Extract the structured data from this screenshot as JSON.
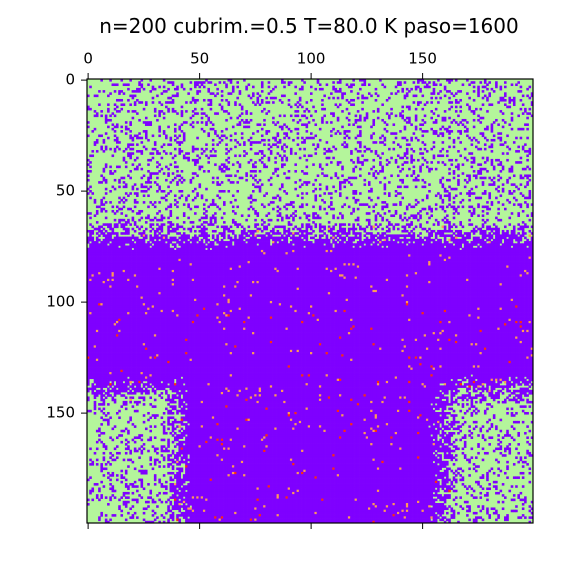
{
  "chart_data": {
    "type": "heatmap",
    "title": "n=200 cubrim.=0.5 T=80.0 K paso=1600",
    "xlabel": "",
    "ylabel": "",
    "xlim": [
      0,
      200
    ],
    "ylim": [
      0,
      200
    ],
    "x_ticks": [
      "0",
      "50",
      "100",
      "150"
    ],
    "y_ticks": [
      "0",
      "50",
      "100",
      "150"
    ],
    "x_axis_position": "top",
    "grid": false,
    "colormap": "rainbow",
    "categories": [
      {
        "value": 0,
        "color": "#7f00ff"
      },
      {
        "value": 1,
        "color": "#b4f59b"
      },
      {
        "value": 2,
        "color": "#ff9a57"
      },
      {
        "value": 3,
        "color": "#ff2a10"
      }
    ],
    "regions": [
      {
        "value": 1,
        "rows": [
          0,
          70
        ],
        "cols": [
          0,
          200
        ]
      },
      {
        "value": 0,
        "rows": [
          70,
          140
        ],
        "cols": [
          0,
          200
        ]
      },
      {
        "value": 0,
        "rows": [
          140,
          200
        ],
        "cols": [
          40,
          160
        ]
      },
      {
        "value": 1,
        "rows": [
          140,
          200
        ],
        "cols": [
          0,
          40
        ]
      },
      {
        "value": 1,
        "rows": [
          150,
          200
        ],
        "cols": [
          160,
          200
        ]
      }
    ]
  }
}
